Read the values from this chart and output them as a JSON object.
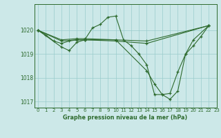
{
  "title": "Graphe pression niveau de la mer (hPa)",
  "bg_color": "#cce8e8",
  "line_color": "#2d6a2d",
  "grid_color": "#99cccc",
  "xlim": [
    -0.5,
    23
  ],
  "ylim": [
    1016.75,
    1021.1
  ],
  "yticks": [
    1017,
    1018,
    1019,
    1020
  ],
  "xtick_labels": [
    "0",
    "1",
    "2",
    "3",
    "4",
    "5",
    "6",
    "7",
    "8",
    "9",
    "10",
    "11",
    "12",
    "13",
    "14",
    "15",
    "16",
    "17",
    "18",
    "19",
    "20",
    "21",
    "22",
    "23"
  ],
  "xticks": [
    0,
    1,
    2,
    3,
    4,
    5,
    6,
    7,
    8,
    9,
    10,
    11,
    12,
    13,
    14,
    15,
    16,
    17,
    18,
    19,
    20,
    21,
    22,
    23
  ],
  "series_x": [
    [
      0,
      1,
      2,
      3,
      4,
      5,
      6,
      7,
      8,
      9,
      10,
      11,
      12,
      13,
      14,
      15,
      16,
      17,
      18,
      19,
      20,
      21,
      22
    ],
    [
      0,
      3,
      5,
      6,
      10,
      14,
      15,
      16,
      17,
      18,
      19,
      20,
      22
    ],
    [
      0,
      3,
      4,
      5,
      6,
      10,
      14,
      22
    ],
    [
      0,
      3,
      5,
      6,
      10,
      14,
      22
    ]
  ],
  "series_y": [
    [
      1020.0,
      1019.8,
      1019.55,
      1019.45,
      1019.55,
      1019.6,
      1019.6,
      1020.1,
      1020.25,
      1020.55,
      1020.6,
      1019.6,
      1019.35,
      1019.0,
      1018.55,
      1017.3,
      1017.3,
      1017.1,
      1017.45,
      1019.0,
      1019.35,
      1019.75,
      1020.2
    ],
    [
      1020.0,
      1019.55,
      1019.6,
      1019.6,
      1019.6,
      1018.3,
      1017.75,
      1017.3,
      1017.35,
      1018.25,
      1019.0,
      1019.6,
      1020.2
    ],
    [
      1020.0,
      1019.3,
      1019.15,
      1019.5,
      1019.6,
      1019.55,
      1019.45,
      1020.2
    ],
    [
      1020.0,
      1019.6,
      1019.65,
      1019.65,
      1019.6,
      1019.55,
      1020.2
    ]
  ],
  "figsize": [
    3.2,
    2.0
  ],
  "dpi": 100
}
